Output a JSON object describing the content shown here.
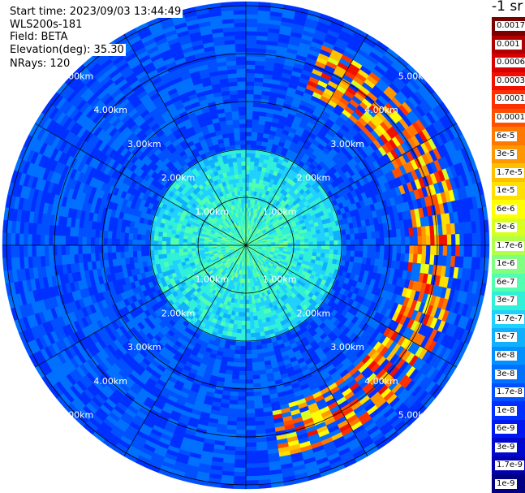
{
  "info": {
    "start_time": "Start time: 2023/09/03 13:44:49",
    "instrument": "WLS200s-181",
    "field": "Field: BETA",
    "elevation": "Elevation(deg): 35.30",
    "nrays": "NRays: 120"
  },
  "colorbar": {
    "title": "-1 sr",
    "labels": [
      "0.0017",
      "0.001",
      "0.0006",
      "0.0003",
      "0.00017",
      "0.0001",
      "6e-5",
      "3e-5",
      "1.7e-5",
      "1e-5",
      "6e-6",
      "3e-6",
      "1.7e-6",
      "1e-6",
      "6e-7",
      "3e-7",
      "1.7e-7",
      "1e-7",
      "6e-8",
      "3e-8",
      "1.7e-8",
      "1e-8",
      "6e-9",
      "3e-9",
      "1.7e-9",
      "1e-9"
    ],
    "colors": [
      "#7a0000",
      "#b00000",
      "#d80000",
      "#f01000",
      "#ff3000",
      "#ff5000",
      "#ff7800",
      "#ff9800",
      "#ffc000",
      "#ffe000",
      "#ffff00",
      "#d8ff20",
      "#b0ff48",
      "#80ff80",
      "#50ffb0",
      "#30f0d8",
      "#20d0ff",
      "#10b0ff",
      "#0090ff",
      "#0070ff",
      "#0050ff",
      "#0030ff",
      "#0018f0",
      "#0008d0",
      "#0000b0",
      "#000080"
    ]
  },
  "chart_data": {
    "type": "heatmap",
    "subtype": "polar-ppi",
    "n_rays": 120,
    "range_rings_km": [
      1,
      2,
      3,
      4,
      5
    ],
    "ring_labels": [
      "1.00km",
      "2.00km",
      "3.00km",
      "4.00km",
      "5.00km"
    ],
    "range_km": [
      0,
      5.8
    ],
    "colorscale": "jet-log",
    "features": [
      {
        "desc": "high backscatter band (ring)",
        "range_km": [
          3.7,
          4.2
        ],
        "azimuth_deg": [
          20,
          170
        ],
        "level": "3e-5 to 0.0003"
      },
      {
        "desc": "near field",
        "range_km": [
          0,
          2.0
        ],
        "level": "3e-7 to 3e-6"
      },
      {
        "desc": "background",
        "range_km": [
          2.0,
          5.8
        ],
        "level": "1e-8 to 1e-7"
      }
    ]
  }
}
